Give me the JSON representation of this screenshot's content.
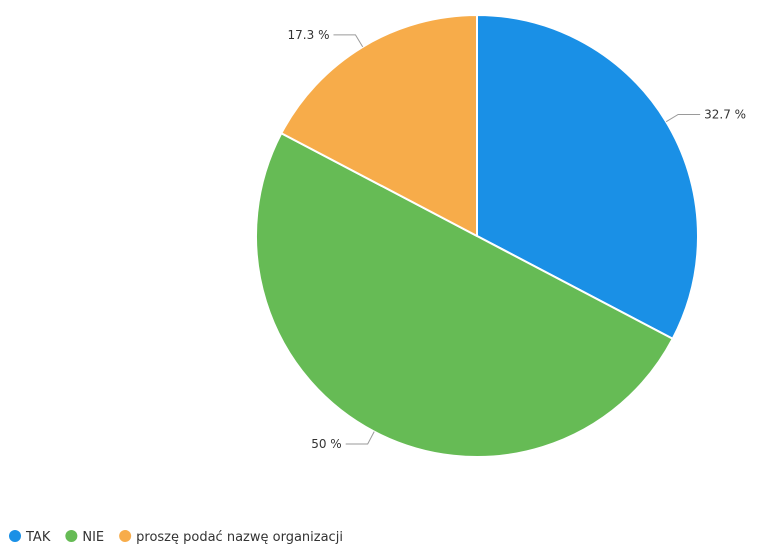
{
  "chart_data": {
    "type": "pie",
    "categories": [
      "TAK",
      "NIE",
      "proszę podać nazwę organizacji"
    ],
    "values": [
      32.7,
      50,
      17.3
    ],
    "labels": [
      "32.7 %",
      "50 %",
      "17.3 %"
    ],
    "colors": [
      "#1a90e6",
      "#66bb55",
      "#f7ac4a"
    ],
    "legend_position": "bottom-left"
  }
}
